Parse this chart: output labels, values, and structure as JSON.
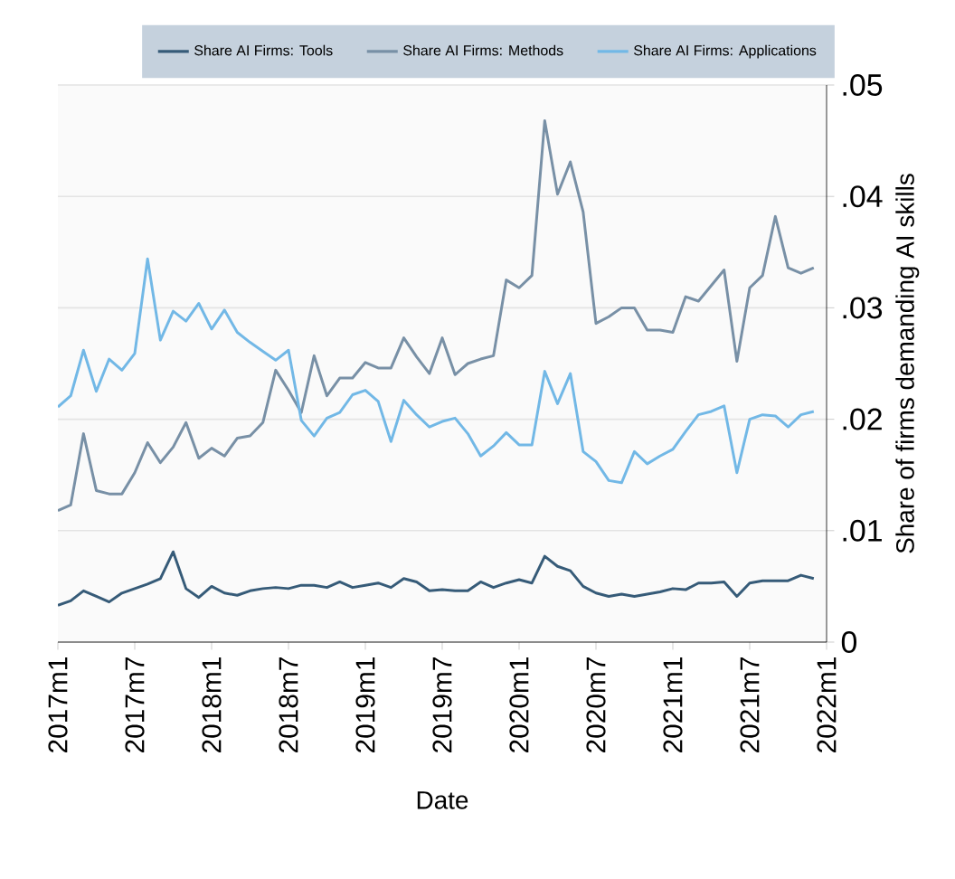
{
  "chart_data": {
    "type": "line",
    "xlabel": "Date",
    "ylabel": "Share of firms demanding AI skills",
    "x": [
      "2017-01",
      "2017-02",
      "2017-03",
      "2017-04",
      "2017-05",
      "2017-06",
      "2017-07",
      "2017-08",
      "2017-09",
      "2017-10",
      "2017-11",
      "2017-12",
      "2018-01",
      "2018-02",
      "2018-03",
      "2018-04",
      "2018-05",
      "2018-06",
      "2018-07",
      "2018-08",
      "2018-09",
      "2018-10",
      "2018-11",
      "2018-12",
      "2019-01",
      "2019-02",
      "2019-03",
      "2019-04",
      "2019-05",
      "2019-06",
      "2019-07",
      "2019-08",
      "2019-09",
      "2019-10",
      "2019-11",
      "2019-12",
      "2020-01",
      "2020-02",
      "2020-03",
      "2020-04",
      "2020-05",
      "2020-06",
      "2020-07",
      "2020-08",
      "2020-09",
      "2020-10",
      "2020-11",
      "2020-12",
      "2021-01",
      "2021-02",
      "2021-03",
      "2021-04",
      "2021-05",
      "2021-06",
      "2021-07",
      "2021-08",
      "2021-09",
      "2021-10",
      "2021-11",
      "2021-12"
    ],
    "series": [
      {
        "name": "Share AI Firms: Tools",
        "color": "#365b78",
        "values": [
          0.0033,
          0.0037,
          0.0046,
          0.0041,
          0.0036,
          0.0044,
          0.0048,
          0.0052,
          0.0057,
          0.0081,
          0.0048,
          0.004,
          0.005,
          0.0044,
          0.0042,
          0.0046,
          0.0048,
          0.0049,
          0.0048,
          0.0051,
          0.0051,
          0.0049,
          0.0054,
          0.0049,
          0.0051,
          0.0053,
          0.0049,
          0.0057,
          0.0054,
          0.0046,
          0.0047,
          0.0046,
          0.0046,
          0.0054,
          0.0049,
          0.0053,
          0.0056,
          0.0053,
          0.0077,
          0.0068,
          0.0064,
          0.005,
          0.0044,
          0.0041,
          0.0043,
          0.0041,
          0.0043,
          0.0045,
          0.0048,
          0.0047,
          0.0053,
          0.0053,
          0.0054,
          0.0041,
          0.0053,
          0.0055,
          0.0055,
          0.0055,
          0.006,
          0.0057
        ]
      },
      {
        "name": "Share AI Firms: Methods",
        "color": "#7890a6",
        "values": [
          0.0118,
          0.0123,
          0.0187,
          0.0136,
          0.0133,
          0.0133,
          0.0152,
          0.0179,
          0.0161,
          0.0175,
          0.0197,
          0.0165,
          0.0174,
          0.0167,
          0.0183,
          0.0185,
          0.0197,
          0.0244,
          0.0226,
          0.0206,
          0.0257,
          0.0221,
          0.0237,
          0.0237,
          0.0251,
          0.0246,
          0.0246,
          0.0273,
          0.0256,
          0.0241,
          0.0273,
          0.024,
          0.025,
          0.0254,
          0.0257,
          0.0325,
          0.0318,
          0.0329,
          0.0468,
          0.0402,
          0.0431,
          0.0386,
          0.0286,
          0.0292,
          0.03,
          0.03,
          0.028,
          0.028,
          0.0278,
          0.031,
          0.0306,
          0.032,
          0.0334,
          0.0252,
          0.0318,
          0.0329,
          0.0382,
          0.0336,
          0.0331,
          0.0336
        ]
      },
      {
        "name": "Share AI Firms: Applications",
        "color": "#72b8e6",
        "values": [
          0.0211,
          0.0221,
          0.0262,
          0.0225,
          0.0254,
          0.0244,
          0.0259,
          0.0344,
          0.0271,
          0.0297,
          0.0288,
          0.0304,
          0.0281,
          0.0298,
          0.0278,
          0.0269,
          0.0261,
          0.0253,
          0.0262,
          0.0199,
          0.0185,
          0.0201,
          0.0206,
          0.0222,
          0.0226,
          0.0216,
          0.018,
          0.0217,
          0.0204,
          0.0193,
          0.0198,
          0.0201,
          0.0187,
          0.0167,
          0.0176,
          0.0188,
          0.0177,
          0.0177,
          0.0243,
          0.0214,
          0.0241,
          0.0171,
          0.0162,
          0.0145,
          0.0143,
          0.0171,
          0.016,
          0.0167,
          0.0173,
          0.0189,
          0.0204,
          0.0207,
          0.0212,
          0.0152,
          0.02,
          0.0204,
          0.0203,
          0.0193,
          0.0204,
          0.0207
        ]
      }
    ],
    "xlim": [
      "2017-01",
      "2022-01"
    ],
    "xticks": [
      {
        "value": "2017-01",
        "label": "2017m1"
      },
      {
        "value": "2017-07",
        "label": "2017m7"
      },
      {
        "value": "2018-01",
        "label": "2018m1"
      },
      {
        "value": "2018-07",
        "label": "2018m7"
      },
      {
        "value": "2019-01",
        "label": "2019m1"
      },
      {
        "value": "2019-07",
        "label": "2019m7"
      },
      {
        "value": "2020-01",
        "label": "2020m1"
      },
      {
        "value": "2020-07",
        "label": "2020m7"
      },
      {
        "value": "2021-01",
        "label": "2021m1"
      },
      {
        "value": "2021-07",
        "label": "2021m7"
      },
      {
        "value": "2022-01",
        "label": "2022m1"
      }
    ],
    "ylim": [
      0,
      0.05
    ],
    "yticks": [
      0,
      {
        "value": 0.01,
        "label": ".01"
      },
      {
        "value": 0.02,
        "label": ".02"
      },
      {
        "value": 0.03,
        "label": ".03"
      },
      {
        "value": 0.04,
        "label": ".04"
      },
      {
        "value": 0.05,
        "label": ".05"
      }
    ],
    "grid": "y",
    "legend": "top",
    "marker": "none",
    "line_style": "solid"
  }
}
